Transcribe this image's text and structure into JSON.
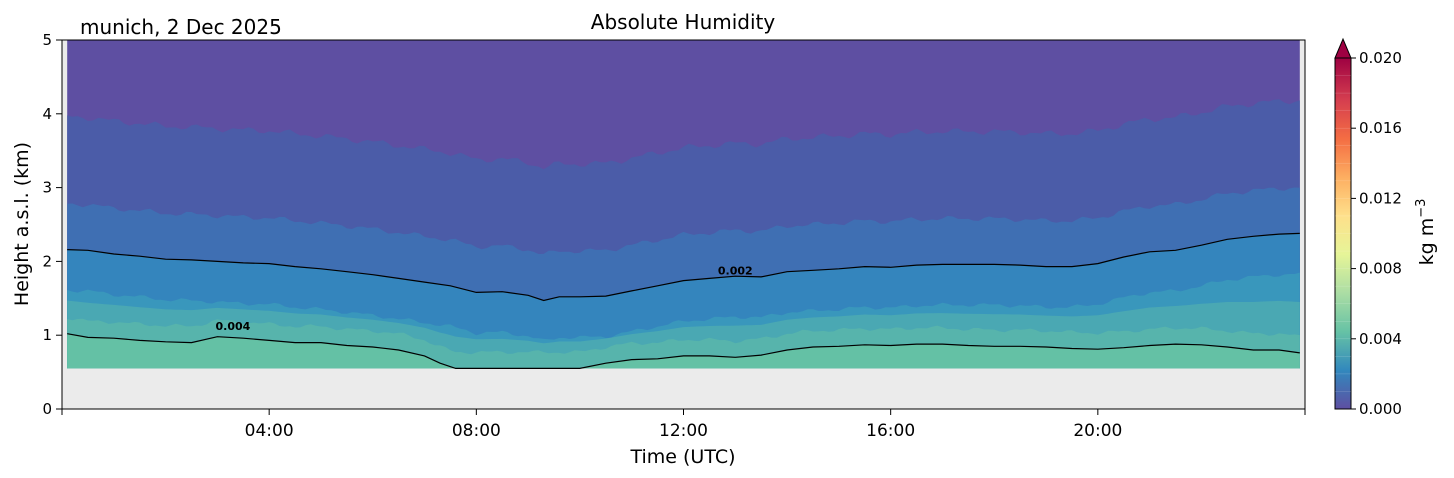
{
  "chart_data": {
    "type": "heatmap",
    "title": "Absolute Humidity",
    "subtitle": "munich, 2 Dec 2025",
    "xlabel": "Time (UTC)",
    "ylabel": "Height a.s.l. (km)",
    "xlim_hours": [
      0,
      24
    ],
    "ylim": [
      0,
      5
    ],
    "x_ticks": [
      {
        "value": 4,
        "label": "04:00"
      },
      {
        "value": 8,
        "label": "08:00"
      },
      {
        "value": 12,
        "label": "12:00"
      },
      {
        "value": 16,
        "label": "16:00"
      },
      {
        "value": 20,
        "label": "20:00"
      }
    ],
    "y_ticks": [
      {
        "value": 0,
        "label": "0"
      },
      {
        "value": 1,
        "label": "1"
      },
      {
        "value": 2,
        "label": "2"
      },
      {
        "value": 3,
        "label": "3"
      },
      {
        "value": 4,
        "label": "4"
      },
      {
        "value": 5,
        "label": "5"
      }
    ],
    "data_bottom_km": 0.55,
    "colorbar": {
      "label": "kg m",
      "label_exponent": "−3",
      "range": [
        0,
        0.02
      ],
      "extend": "max",
      "ticks": [
        {
          "value": 0.0,
          "label": "0.000"
        },
        {
          "value": 0.004,
          "label": "0.004"
        },
        {
          "value": 0.008,
          "label": "0.008"
        },
        {
          "value": 0.012,
          "label": "0.012"
        },
        {
          "value": 0.016,
          "label": "0.016"
        },
        {
          "value": 0.02,
          "label": "0.020"
        }
      ],
      "colors": [
        "#5e4fa2",
        "#3288bd",
        "#66c2a5",
        "#abdda4",
        "#e6f598",
        "#fee08b",
        "#fdae61",
        "#f46d43",
        "#d53e4f",
        "#9e0142"
      ]
    },
    "contours": [
      {
        "level": 0.002,
        "label": "0.002",
        "label_at": [
          13.0,
          1.82
        ],
        "x": [
          0.1,
          0.5,
          1,
          1.5,
          2,
          2.5,
          3,
          3.5,
          4,
          4.5,
          5,
          5.5,
          6,
          6.5,
          7,
          7.5,
          8,
          8.5,
          9,
          9.3,
          9.6,
          10,
          10.5,
          11,
          11.5,
          12,
          12.5,
          13,
          13.5,
          14,
          14.5,
          15,
          15.5,
          16,
          16.5,
          17,
          17.5,
          18,
          18.5,
          19,
          19.5,
          20,
          20.5,
          21,
          21.5,
          22,
          22.5,
          23,
          23.5,
          23.9
        ],
        "y": [
          2.16,
          2.15,
          2.1,
          2.07,
          2.03,
          2.02,
          2.0,
          1.98,
          1.97,
          1.93,
          1.9,
          1.86,
          1.82,
          1.77,
          1.72,
          1.67,
          1.58,
          1.59,
          1.54,
          1.47,
          1.52,
          1.52,
          1.53,
          1.6,
          1.67,
          1.74,
          1.77,
          1.8,
          1.79,
          1.86,
          1.88,
          1.9,
          1.93,
          1.92,
          1.95,
          1.96,
          1.96,
          1.96,
          1.95,
          1.93,
          1.93,
          1.97,
          2.06,
          2.13,
          2.15,
          2.22,
          2.3,
          2.34,
          2.37,
          2.38
        ]
      },
      {
        "level": 0.004,
        "label": "0.004",
        "label_at": [
          3.3,
          1.07
        ],
        "x": [
          0.1,
          0.5,
          1,
          1.5,
          2,
          2.5,
          3,
          3.5,
          4,
          4.5,
          5,
          5.5,
          6,
          6.5,
          7,
          7.3,
          7.6,
          8,
          8.5,
          9,
          9.5,
          10,
          10.5,
          11,
          11.5,
          12,
          12.5,
          13,
          13.5,
          14,
          14.5,
          15,
          15.5,
          16,
          16.5,
          17,
          17.5,
          18,
          18.5,
          19,
          19.5,
          20,
          20.5,
          21,
          21.5,
          22,
          22.5,
          23,
          23.5,
          23.9
        ],
        "y": [
          1.02,
          0.97,
          0.96,
          0.93,
          0.91,
          0.9,
          0.98,
          0.96,
          0.93,
          0.9,
          0.9,
          0.86,
          0.84,
          0.8,
          0.72,
          0.62,
          0.55,
          0.55,
          0.55,
          0.55,
          0.55,
          0.55,
          0.62,
          0.67,
          0.68,
          0.72,
          0.72,
          0.7,
          0.73,
          0.8,
          0.84,
          0.85,
          0.87,
          0.86,
          0.88,
          0.88,
          0.86,
          0.85,
          0.85,
          0.84,
          0.82,
          0.81,
          0.83,
          0.86,
          0.88,
          0.87,
          0.84,
          0.8,
          0.8,
          0.76
        ]
      }
    ]
  }
}
